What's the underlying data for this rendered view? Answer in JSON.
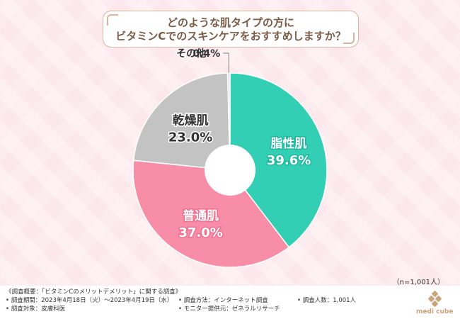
{
  "title": {
    "line1": "どのような肌タイプの方に",
    "line2": "ビタミンCでのスキンケアをおすすめしますか？"
  },
  "chart_data": {
    "type": "pie",
    "variant": "donut",
    "slices": [
      {
        "label": "脂性肌",
        "value": 39.6,
        "value_text": "39.6%",
        "color": "#33cfb4"
      },
      {
        "label": "普通肌",
        "value": 37.0,
        "value_text": "37.0%",
        "color": "#f78da7"
      },
      {
        "label": "乾燥肌",
        "value": 23.0,
        "value_text": "23.0%",
        "color": "#c3c3c3"
      },
      {
        "label": "その他",
        "value": 0.4,
        "value_text": "0.4%",
        "color": "#dddddd"
      }
    ],
    "start": "12 o'clock",
    "direction": "clockwise"
  },
  "sample_note": "（n=1,001人）",
  "footer": {
    "survey_title": "《調査概要：「ビタミンCのメリットデメリット」に関する調査》",
    "period": "• 調査期間：2023年4月18日（火）～2023年4月19日（水）",
    "target": "• 調査対象：皮膚科医",
    "method": "• 調査方法：インターネット調査",
    "provider": "• モニター提供元：ゼネラルリサーチ",
    "count": "• 調査人数：1,001人"
  },
  "logo": {
    "text": "medi cube",
    "color": "#c9a47c"
  }
}
